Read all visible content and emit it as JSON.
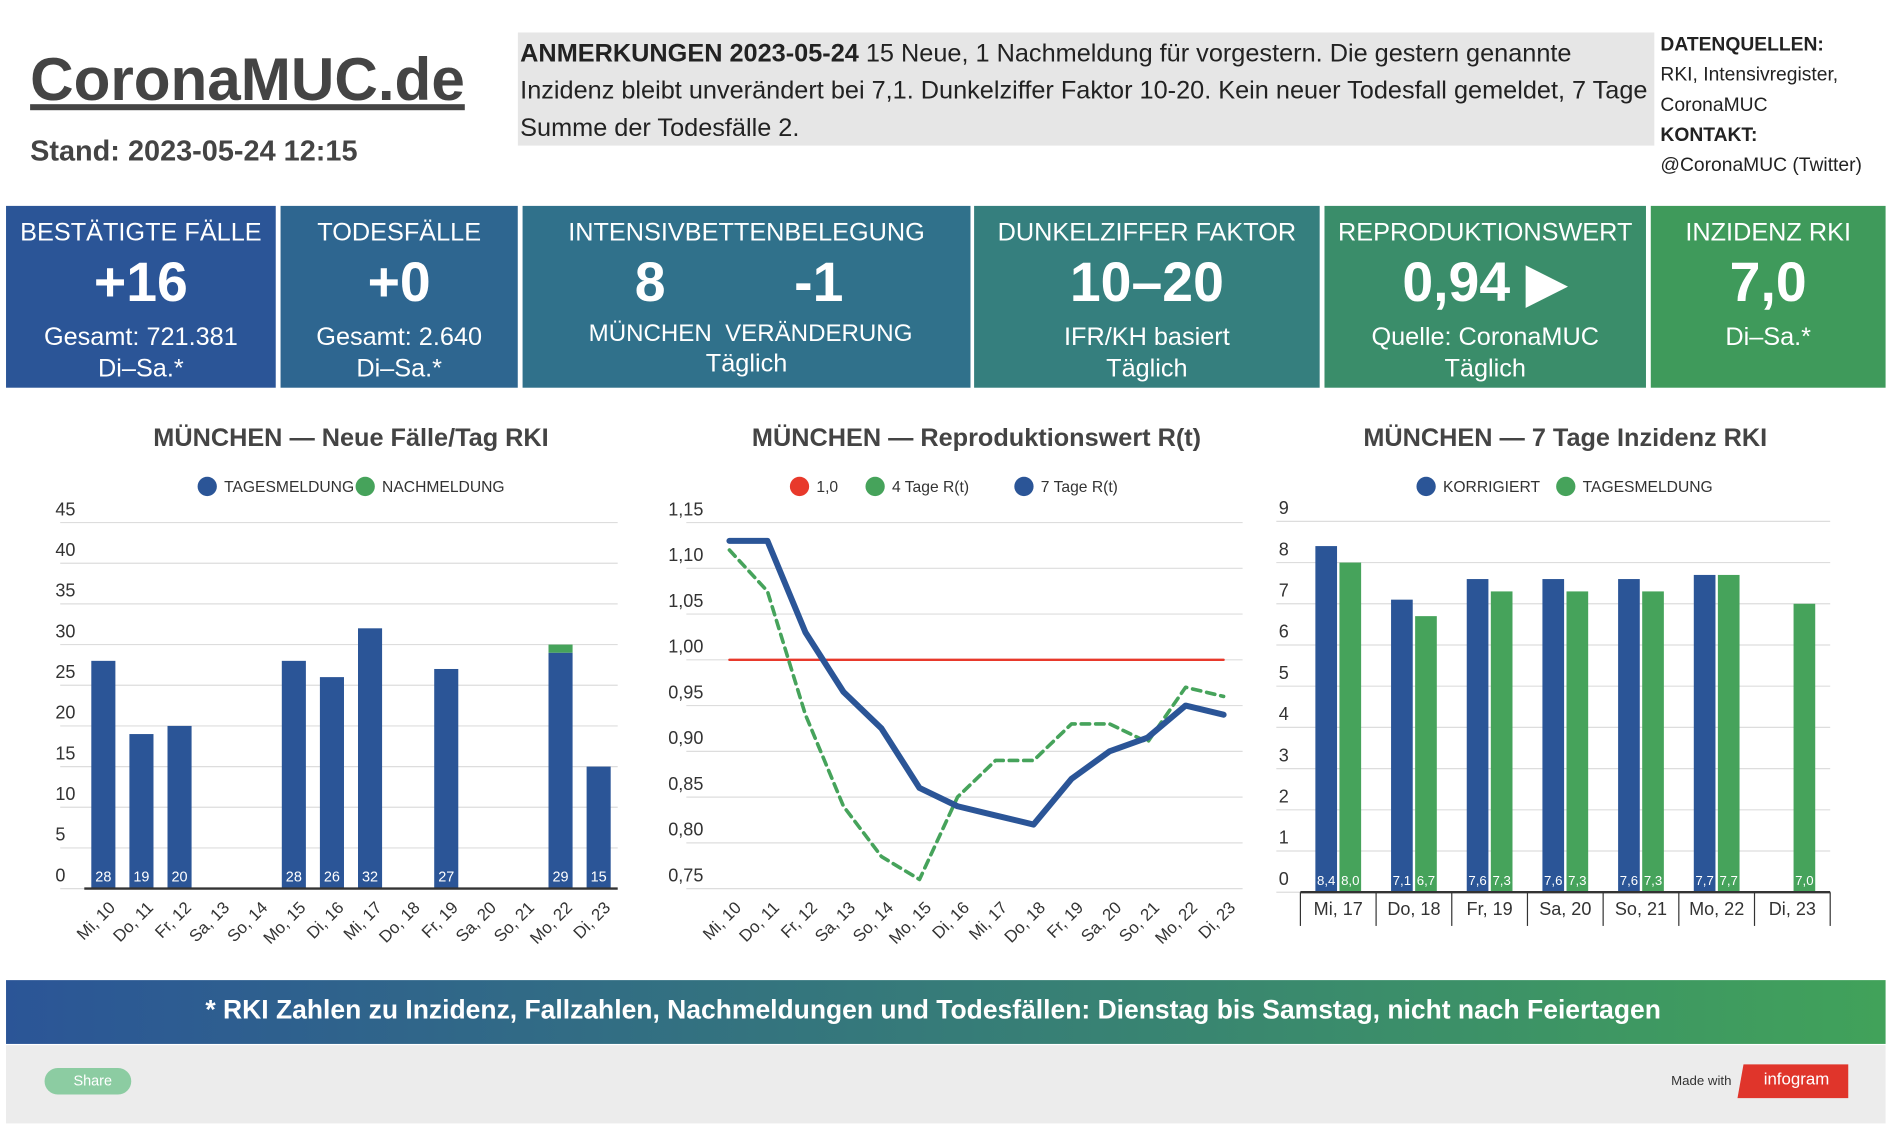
{
  "header": {
    "title": "CoronaMUC.de",
    "stand": "Stand: 2023-05-24 12:15",
    "notes_heading": "ANMERKUNGEN 2023-05-24",
    "notes": "15 Neue, 1 Nachmeldung für vorgestern. Die gestern genannte Inzidenz bleibt unverändert bei 7,1. Dunkelziffer Faktor 10-20. Kein neuer Todesfall gemeldet, 7 Tage Summe der Todesfälle 2.",
    "sources_heading": "DATENQUELLEN:",
    "sources": "RKI, Intensivregister, CoronaMUC",
    "contact_heading": "KONTAKT:",
    "contact": "@CoronaMUC (Twitter)"
  },
  "kpis": [
    {
      "title": "BESTÄTIGTE FÄLLE",
      "value": "+16",
      "lines": [
        "Gesamt: 721.381",
        "Di–Sa.*"
      ]
    },
    {
      "title": "TODESFÄLLE",
      "value": "+0",
      "lines": [
        "Gesamt: 2.640",
        "Di–Sa.*"
      ]
    },
    {
      "title": "INTENSIVBETTENBELEGUNG",
      "pairs": [
        {
          "value": "8",
          "label": "MÜNCHEN"
        },
        {
          "value": "-1",
          "label": "VERÄNDERUNG"
        }
      ],
      "lines": [
        "Täglich"
      ]
    },
    {
      "title": "DUNKELZIFFER FAKTOR",
      "value": "10–20",
      "lines": [
        "IFR/KH basiert",
        "Täglich"
      ]
    },
    {
      "title": "REPRODUKTIONSWERT",
      "value": "0,94 ▶",
      "lines": [
        "Quelle: CoronaMUC",
        "Täglich"
      ]
    },
    {
      "title": "INZIDENZ RKI",
      "value": "7,0",
      "lines": [
        "Di–Sa.*"
      ]
    }
  ],
  "chart_data": [
    {
      "type": "bar",
      "stacked": true,
      "title": "MÜNCHEN — Neue Fälle/Tag RKI",
      "categories": [
        "Mi, 10",
        "Do, 11",
        "Fr, 12",
        "Sa, 13",
        "So, 14",
        "Mo, 15",
        "Di, 16",
        "Mi, 17",
        "Do, 18",
        "Fr, 19",
        "Sa, 20",
        "So, 21",
        "Mo, 22",
        "Di, 23"
      ],
      "ylim": [
        0,
        45
      ],
      "yticks": [
        0,
        5,
        10,
        15,
        20,
        25,
        30,
        35,
        40,
        45
      ],
      "grid": true,
      "series": [
        {
          "name": "TAGESMELDUNG",
          "color": "#2b5597",
          "show_labels": true,
          "values": [
            28,
            19,
            20,
            null,
            null,
            28,
            26,
            32,
            null,
            27,
            null,
            null,
            29,
            15
          ]
        },
        {
          "name": "NACHMELDUNG",
          "color": "#46a35b",
          "show_labels": false,
          "values": [
            0,
            0,
            0,
            null,
            null,
            0,
            0,
            0,
            null,
            0,
            null,
            null,
            1,
            0
          ]
        }
      ]
    },
    {
      "type": "line",
      "title": "MÜNCHEN — Reproduktionswert R(t)",
      "categories": [
        "Mi, 10",
        "Do, 11",
        "Fr, 12",
        "Sa, 13",
        "So, 14",
        "Mo, 15",
        "Di, 16",
        "Mi, 17",
        "Do, 18",
        "Fr, 19",
        "Sa, 20",
        "So, 21",
        "Mo, 22",
        "Di, 23"
      ],
      "ylim": [
        0.75,
        1.15
      ],
      "yticks": [
        {
          "value": 0.75,
          "label": "0,75"
        },
        {
          "value": 0.8,
          "label": "0,80"
        },
        {
          "value": 0.85,
          "label": "0,85"
        },
        {
          "value": 0.9,
          "label": "0,90"
        },
        {
          "value": 0.95,
          "label": "0,95"
        },
        {
          "value": 1.0,
          "label": "1,00"
        },
        {
          "value": 1.05,
          "label": "1,05"
        },
        {
          "value": 1.1,
          "label": "1,10"
        },
        {
          "value": 1.15,
          "label": "1,15"
        }
      ],
      "grid": true,
      "series": [
        {
          "name": "1,0",
          "color": "#e8392b",
          "style": "solid",
          "width": 2,
          "values": [
            1.0,
            1.0,
            1.0,
            1.0,
            1.0,
            1.0,
            1.0,
            1.0,
            1.0,
            1.0,
            1.0,
            1.0,
            1.0,
            1.0
          ]
        },
        {
          "name": "4 Tage R(t)",
          "color": "#46a35b",
          "style": "dashed",
          "width": 3,
          "values": [
            1.12,
            1.075,
            0.94,
            0.84,
            0.785,
            0.76,
            0.85,
            0.89,
            0.89,
            0.93,
            0.93,
            0.91,
            0.97,
            0.96
          ]
        },
        {
          "name": "7 Tage R(t)",
          "color": "#2b5597",
          "style": "solid",
          "width": 5,
          "values": [
            1.13,
            1.13,
            1.03,
            0.965,
            0.925,
            0.86,
            0.84,
            0.83,
            0.82,
            0.87,
            0.9,
            0.915,
            0.95,
            0.94
          ]
        }
      ]
    },
    {
      "type": "bar",
      "stacked": false,
      "title": "MÜNCHEN — 7 Tage Inzidenz RKI",
      "categories": [
        "Mi, 17",
        "Do, 18",
        "Fr, 19",
        "Sa, 20",
        "So, 21",
        "Mo, 22",
        "Di, 23"
      ],
      "ylim": [
        0,
        9
      ],
      "yticks": [
        0,
        1,
        2,
        3,
        4,
        5,
        6,
        7,
        8,
        9
      ],
      "grid": true,
      "series": [
        {
          "name": "KORRIGIERT",
          "color": "#2b5597",
          "show_labels": true,
          "values": [
            8.4,
            7.1,
            7.6,
            7.6,
            7.6,
            7.7,
            null
          ],
          "value_labels": [
            "8,4",
            "7,1",
            "7,6",
            "7,6",
            "7,6",
            "7,7",
            null
          ]
        },
        {
          "name": "TAGESMELDUNG",
          "color": "#46a35b",
          "show_labels": true,
          "values": [
            8.0,
            6.7,
            7.3,
            7.3,
            7.3,
            7.7,
            7.0
          ],
          "value_labels": [
            "8,0",
            "6,7",
            "7,3",
            "7,3",
            "7,3",
            "7,7",
            "7,0"
          ]
        }
      ]
    }
  ],
  "footer": {
    "note": "* RKI Zahlen zu Inzidenz, Fallzahlen, Nachmeldungen und Todesfällen: Dienstag bis Samstag, nicht nach Feiertagen",
    "share": "Share",
    "made_with": "Made with",
    "brand": "infogram"
  }
}
